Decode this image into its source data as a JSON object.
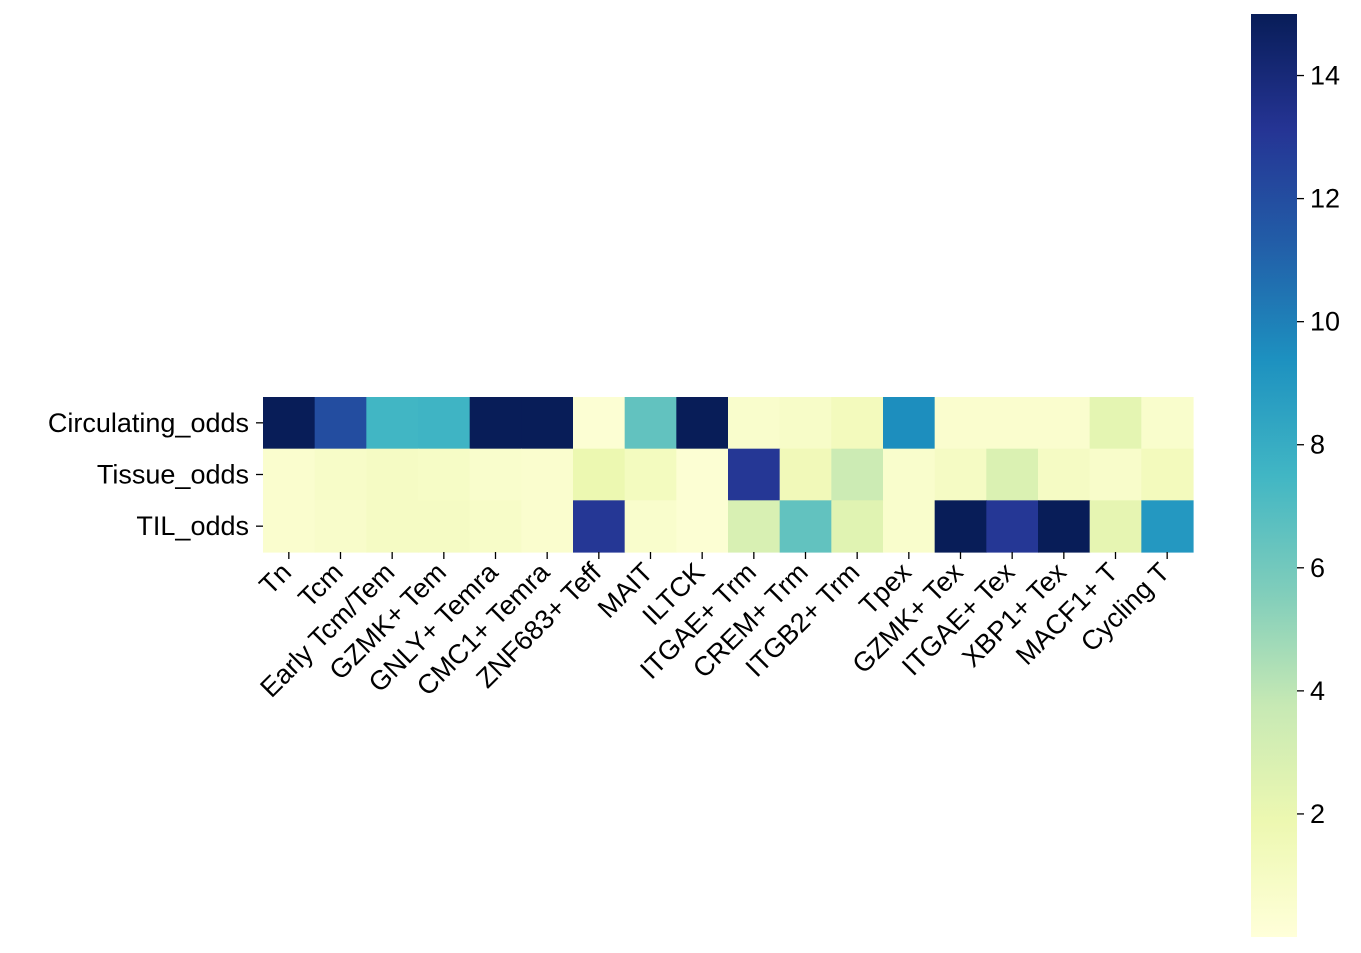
{
  "chart_data": {
    "type": "heatmap",
    "title": "",
    "xlabel": "",
    "ylabel": "",
    "rows": [
      "Circulating_odds",
      "Tissue_odds",
      "TIL_odds"
    ],
    "columns": [
      "Tn",
      "Tcm",
      "Early Tcm/Tem",
      "GZMK+ Tem",
      "GNLY+ Temra",
      "CMC1+ Temra",
      "ZNF683+ Teff",
      "MAIT",
      "ILTCK",
      "ITGAE+ Trm",
      "CREM+ Trm",
      "ITGB2+ Trm",
      "Tpex",
      "GZMK+ Tex",
      "ITGAE+ Tex",
      "XBP1+ Tex",
      "MACF1+ T",
      "Cycling T"
    ],
    "values": [
      [
        15.0,
        12.0,
        7.5,
        7.6,
        15.0,
        15.0,
        0.3,
        6.5,
        15.0,
        0.6,
        0.8,
        1.3,
        9.5,
        0.5,
        0.5,
        0.5,
        2.3,
        0.6
      ],
      [
        0.5,
        0.8,
        1.0,
        0.9,
        0.6,
        0.5,
        1.9,
        1.2,
        0.3,
        13.0,
        1.5,
        3.5,
        0.6,
        1.0,
        2.8,
        1.0,
        0.7,
        1.3
      ],
      [
        0.5,
        0.7,
        1.0,
        1.0,
        0.8,
        0.5,
        13.0,
        0.6,
        0.3,
        2.9,
        6.5,
        2.5,
        0.6,
        15.0,
        13.0,
        15.0,
        2.2,
        9.0
      ]
    ],
    "vmin": 0,
    "vmax": 15,
    "colorbar": {
      "ticks": [
        2,
        4,
        6,
        8,
        10,
        12,
        14
      ],
      "tick_labels": [
        "2",
        "4",
        "6",
        "8",
        "10",
        "12",
        "14"
      ]
    },
    "colormap": "YlGnBu",
    "colormap_stops": [
      "#ffffd9",
      "#edf8b1",
      "#c7e9b4",
      "#7fcdbb",
      "#41b6c4",
      "#1d91c0",
      "#225ea8",
      "#253494",
      "#081d58"
    ],
    "grid": false,
    "legend": "colorbar-right"
  }
}
